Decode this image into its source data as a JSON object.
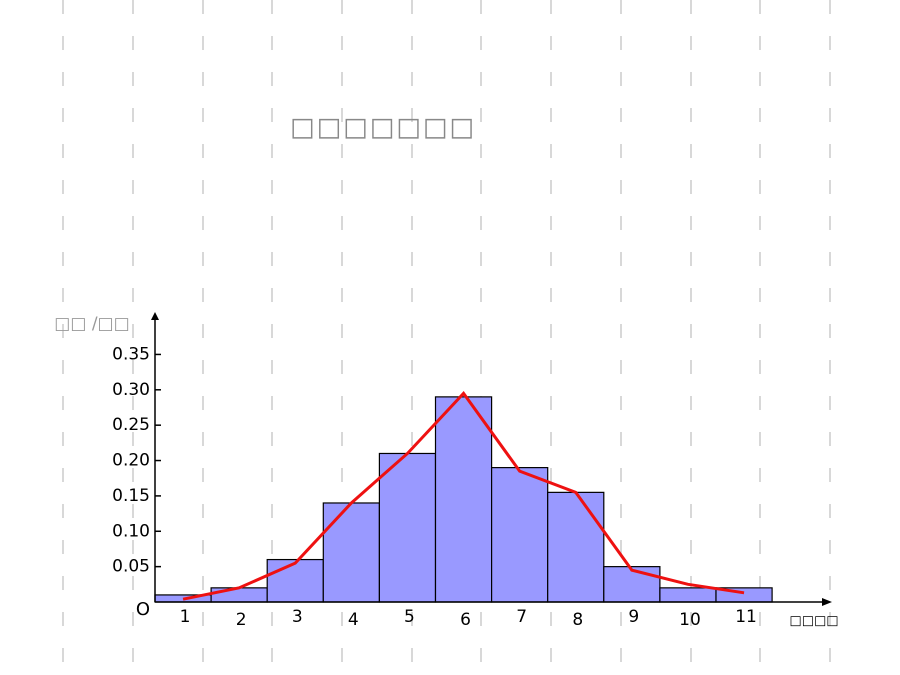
{
  "chart_data": {
    "type": "bar",
    "title": "□□□□□□□",
    "y_label": "□□ /□□",
    "x_label": "□□□□",
    "origin_label": "O",
    "categories": [
      "1",
      "2",
      "3",
      "4",
      "5",
      "6",
      "7",
      "8",
      "9",
      "10",
      "11"
    ],
    "values": [
      0.01,
      0.02,
      0.06,
      0.14,
      0.21,
      0.29,
      0.19,
      0.155,
      0.05,
      0.02,
      0.02
    ],
    "color": "#9999ff",
    "line": {
      "color": "#ee1111",
      "values": [
        0.004,
        0.02,
        0.055,
        0.14,
        0.21,
        0.295,
        0.185,
        0.155,
        0.045,
        0.025,
        0.013
      ]
    },
    "ylim": [
      0,
      0.41
    ],
    "yticks": [
      0.05,
      {
        "value": 0.1,
        "label": "0.10"
      },
      0.15,
      {
        "value": 0.2,
        "label": "0.20"
      },
      0.25,
      {
        "value": 0.3,
        "label": "0.30"
      },
      0.35
    ]
  }
}
